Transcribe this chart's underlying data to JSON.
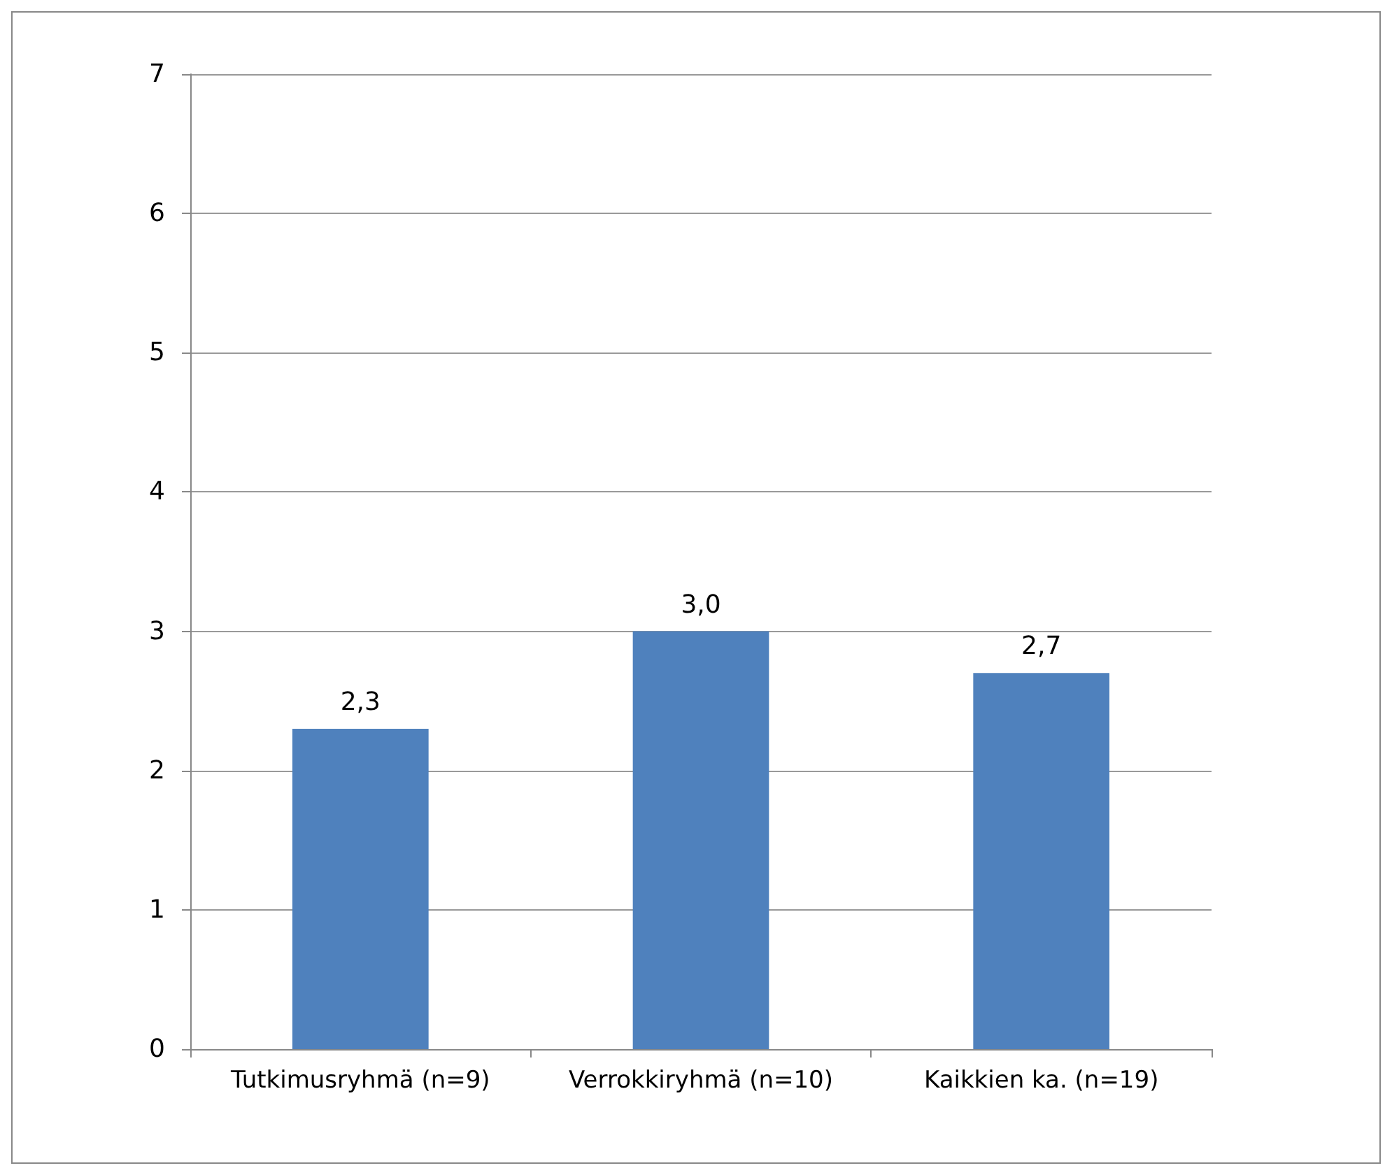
{
  "chart_data": {
    "type": "bar",
    "categories": [
      "Tutkimusryhmä (n=9)",
      "Verrokkiryhmä (n=10)",
      "Kaikkien ka. (n=19)"
    ],
    "values": [
      2.3,
      3.0,
      2.7
    ],
    "value_labels": [
      "2,3",
      "3,0",
      "2,7"
    ],
    "color": "#4f81bd",
    "ylim": [
      0,
      7
    ],
    "yticks": [
      0,
      1,
      2,
      3,
      4,
      5,
      6,
      7
    ],
    "grid": "y"
  }
}
